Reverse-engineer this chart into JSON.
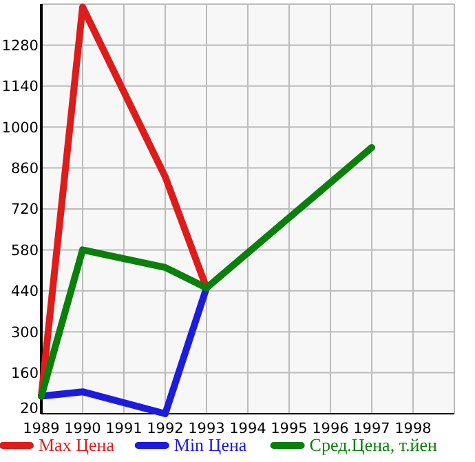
{
  "chart_data": {
    "type": "line",
    "x": [
      1989,
      1990,
      1992,
      1993,
      1997
    ],
    "xlim": [
      1989,
      1999
    ],
    "xticks": [
      1989,
      1990,
      1991,
      1992,
      1993,
      1994,
      1995,
      1996,
      1997,
      1998
    ],
    "ylim": [
      20,
      1420
    ],
    "yticks": [
      20,
      160,
      300,
      440,
      580,
      720,
      860,
      1000,
      1140,
      1280
    ],
    "grid": true,
    "legend": "bottom",
    "marker": "none",
    "line_style": "solid",
    "series": [
      {
        "name": "Max Цена",
        "color": "#dd1c1c",
        "values": [
          80,
          1410,
          830,
          450,
          null
        ]
      },
      {
        "name": "Min Цена",
        "color": "#1c1cdd",
        "values": [
          80,
          95,
          20,
          450,
          null
        ]
      },
      {
        "name": "Сред.Цена, т.йен",
        "color": "#0a800a",
        "values": [
          80,
          580,
          520,
          450,
          930
        ]
      }
    ]
  }
}
